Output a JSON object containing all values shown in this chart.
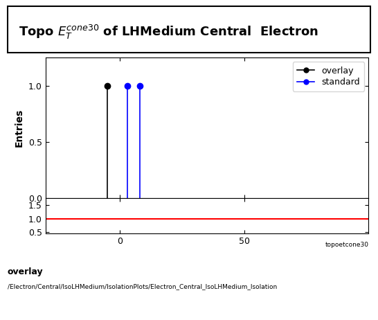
{
  "overlay_x": -5,
  "overlay_y": 1.0,
  "standard_x1": 3,
  "standard_x2": 8,
  "standard_y": 1.0,
  "xlim": [
    -30,
    100
  ],
  "ylim_main": [
    0,
    1.25
  ],
  "ylim_ratio": [
    0.45,
    1.75
  ],
  "yticks_main": [
    0,
    0.5,
    1
  ],
  "yticks_ratio": [
    0.5,
    1,
    1.5
  ],
  "xticks": [
    0,
    50
  ],
  "overlay_color": "#000000",
  "standard_color": "#0000ff",
  "ratio_line_color": "#ff0000",
  "ylabel_main": "Entries",
  "legend_overlay": "overlay",
  "legend_standard": "standard",
  "footer_text1": "overlay",
  "footer_text2": "/Electron/Central/IsoLHMedium/IsolationPlots/Electron_Central_IsoLHMedium_Isolation",
  "background_color": "#ffffff",
  "title_fontsize": 13,
  "axis_fontsize": 10
}
